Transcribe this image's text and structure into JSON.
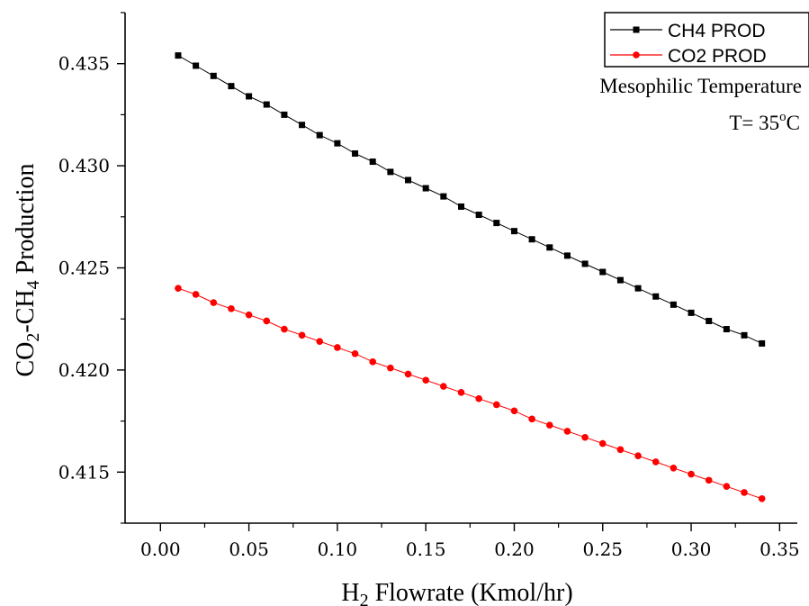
{
  "chart_data": {
    "type": "line",
    "title": "",
    "xlabel": {
      "main": "H",
      "sub": "2",
      "rest": " Flowrate (Kmol/hr)"
    },
    "ylabel": {
      "p1": "CO",
      "s1": "2",
      "p2": "-CH",
      "s2": "4",
      "p3": " Production"
    },
    "xlim": [
      -0.02,
      0.36
    ],
    "ylim": [
      0.4125,
      0.4375
    ],
    "x_ticks": [
      "0.00",
      "0.05",
      "0.10",
      "0.15",
      "0.20",
      "0.25",
      "0.30",
      "0.35"
    ],
    "y_ticks": [
      "0.415",
      "0.420",
      "0.425",
      "0.430",
      "0.435"
    ],
    "grid": false,
    "legend_position": "top-right",
    "annotations": {
      "line1": "Mesophilic Temperature",
      "line2_prefix": "T= 35",
      "line2_sup": "o",
      "line2_suffix": "C"
    },
    "x": [
      0.01,
      0.02,
      0.03,
      0.04,
      0.05,
      0.06,
      0.07,
      0.08,
      0.09,
      0.1,
      0.11,
      0.12,
      0.13,
      0.14,
      0.15,
      0.16,
      0.17,
      0.18,
      0.19,
      0.2,
      0.21,
      0.22,
      0.23,
      0.24,
      0.25,
      0.26,
      0.27,
      0.28,
      0.29,
      0.3,
      0.31,
      0.32,
      0.33,
      0.34
    ],
    "series": [
      {
        "name": "CH4 PROD",
        "color": "#000000",
        "marker": "square",
        "values": [
          0.4354,
          0.4349,
          0.4344,
          0.4339,
          0.4334,
          0.433,
          0.4325,
          0.432,
          0.4315,
          0.4311,
          0.4306,
          0.4302,
          0.4297,
          0.4293,
          0.4289,
          0.4285,
          0.428,
          0.4276,
          0.4272,
          0.4268,
          0.4264,
          0.426,
          0.4256,
          0.4252,
          0.4248,
          0.4244,
          0.424,
          0.4236,
          0.4232,
          0.4228,
          0.4224,
          0.422,
          0.4217,
          0.4213
        ]
      },
      {
        "name": "CO2 PROD",
        "color": "#ff0000",
        "marker": "circle",
        "values": [
          0.424,
          0.4237,
          0.4233,
          0.423,
          0.4227,
          0.4224,
          0.422,
          0.4217,
          0.4214,
          0.4211,
          0.4208,
          0.4204,
          0.4201,
          0.4198,
          0.4195,
          0.4192,
          0.4189,
          0.4186,
          0.4183,
          0.418,
          0.4176,
          0.4173,
          0.417,
          0.4167,
          0.4164,
          0.4161,
          0.4158,
          0.4155,
          0.4152,
          0.4149,
          0.4146,
          0.4143,
          0.414,
          0.4137
        ]
      }
    ]
  }
}
